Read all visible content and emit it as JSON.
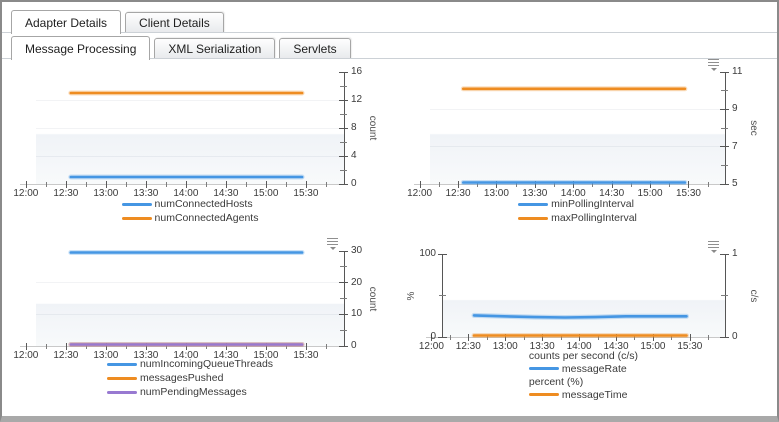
{
  "tabs": {
    "row1": [
      {
        "label": "Adapter Details",
        "active": true
      },
      {
        "label": "Client Details",
        "active": false
      }
    ],
    "row2": [
      {
        "label": "Message Processing",
        "active": true
      },
      {
        "label": "XML Serialization",
        "active": false
      },
      {
        "label": "Servlets",
        "active": false
      }
    ]
  },
  "colors": {
    "blue": "#4596e3",
    "orange": "#ee8c21",
    "purple": "#9879d1"
  },
  "chart_data": [
    {
      "id": "connected-counts",
      "type": "line",
      "x_ticks": [
        "12:00",
        "12:30",
        "13:00",
        "13:30",
        "14:00",
        "14:30",
        "15:00",
        "15:30"
      ],
      "axes": {
        "right": {
          "label": "count",
          "min": 0,
          "max": 16,
          "ticks": [
            0,
            4,
            8,
            12,
            16
          ]
        }
      },
      "series": [
        {
          "name": "numConnectedHosts",
          "color": "#4596e3",
          "axis": "right",
          "values": [
            1,
            1
          ]
        },
        {
          "name": "numConnectedAgents",
          "color": "#ee8c21",
          "axis": "right",
          "values": [
            13,
            13
          ]
        }
      ],
      "legend": [
        {
          "swatch": "#4596e3",
          "label": "numConnectedHosts"
        },
        {
          "swatch": "#ee8c21",
          "label": "numConnectedAgents"
        }
      ],
      "menu_icon": false
    },
    {
      "id": "polling-interval",
      "type": "line",
      "x_ticks": [
        "12:00",
        "12:30",
        "13:00",
        "13:30",
        "14:00",
        "14:30",
        "15:00",
        "15:30"
      ],
      "axes": {
        "right": {
          "label": "sec",
          "min": 5,
          "max": 11,
          "ticks": [
            5,
            7,
            9,
            11
          ]
        }
      },
      "series": [
        {
          "name": "minPollingInterval",
          "color": "#4596e3",
          "axis": "right",
          "values": [
            5,
            5
          ]
        },
        {
          "name": "maxPollingInterval",
          "color": "#ee8c21",
          "axis": "right",
          "values": [
            10.1,
            10.1
          ]
        }
      ],
      "legend": [
        {
          "swatch": "#4596e3",
          "label": "minPollingInterval"
        },
        {
          "swatch": "#ee8c21",
          "label": "maxPollingInterval"
        }
      ],
      "menu_icon": true
    },
    {
      "id": "queue-threads-messages",
      "type": "line",
      "x_ticks": [
        "12:00",
        "12:30",
        "13:00",
        "13:30",
        "14:00",
        "14:30",
        "15:00",
        "15:30"
      ],
      "axes": {
        "right": {
          "label": "count",
          "min": 0,
          "max": 30,
          "ticks": [
            0,
            10,
            20,
            30
          ]
        }
      },
      "series": [
        {
          "name": "numIncomingQueueThreads",
          "color": "#4596e3",
          "axis": "right",
          "values": [
            30,
            30
          ]
        },
        {
          "name": "messagesPushed",
          "color": "#ee8c21",
          "axis": "right",
          "values": [
            0,
            0
          ]
        },
        {
          "name": "numPendingMessages",
          "color": "#9879d1",
          "axis": "right",
          "values": [
            0,
            0
          ]
        }
      ],
      "legend": [
        {
          "swatch": "#4596e3",
          "label": "numIncomingQueueThreads"
        },
        {
          "swatch": "#ee8c21",
          "label": "messagesPushed"
        },
        {
          "swatch": "#9879d1",
          "label": "numPendingMessages"
        }
      ],
      "menu_icon": true
    },
    {
      "id": "message-rate-time",
      "type": "line",
      "x_ticks": [
        "12:00",
        "12:30",
        "13:00",
        "13:30",
        "14:00",
        "14:30",
        "15:00",
        "15:30"
      ],
      "axes": {
        "left": {
          "label": "%",
          "min": 0,
          "max": 100,
          "ticks": [
            0,
            100
          ]
        },
        "right": {
          "label": "c/s",
          "min": 0,
          "max": 1,
          "ticks": [
            0,
            1
          ]
        }
      },
      "series": [
        {
          "name": "messageRate",
          "color": "#4596e3",
          "axis": "right",
          "values": [
            0.26,
            0.25,
            0.24,
            0.235,
            0.24,
            0.25,
            0.25,
            0.25
          ]
        },
        {
          "name": "messageTime",
          "color": "#ee8c21",
          "axis": "left",
          "values": [
            0.5,
            0.5
          ]
        }
      ],
      "legend": [
        {
          "group": "counts per second (c/s)"
        },
        {
          "swatch": "#4596e3",
          "label": "messageRate"
        },
        {
          "group": "percent (%)"
        },
        {
          "swatch": "#ee8c21",
          "label": "messageTime"
        }
      ],
      "menu_icon": true
    }
  ]
}
